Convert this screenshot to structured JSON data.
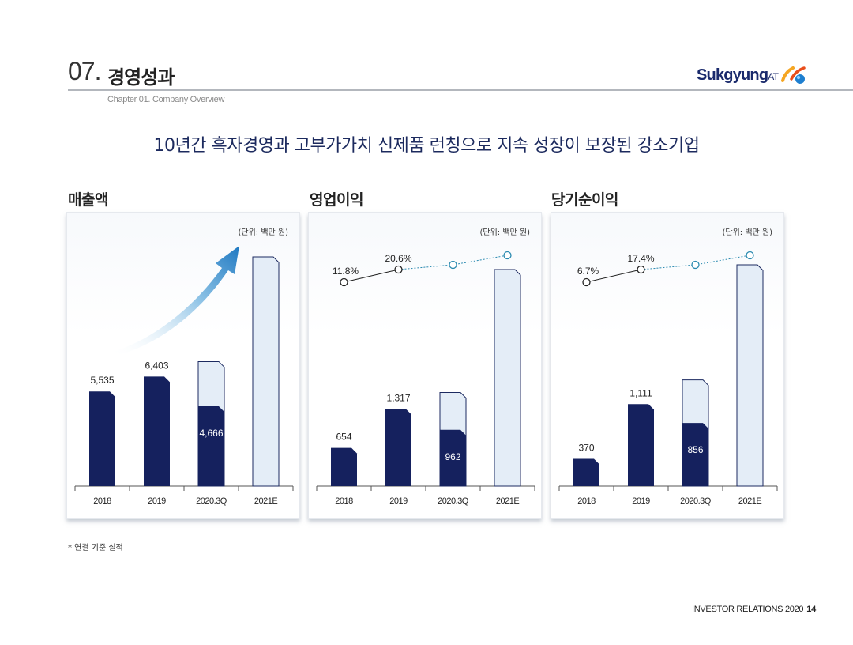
{
  "header": {
    "section_number": "07.",
    "section_title": "경영성과",
    "subtitle": "Chapter 01. Company Overview",
    "logo": {
      "text": "Sukgyung",
      "suffix": "AT",
      "icon": "sukgyung-logo-icon"
    }
  },
  "headline": "10년간 흑자경영과 고부가가치 신제품 런칭으로 지속 성장이 보장된 강소기업",
  "footnote": "* 연결 기준 실적",
  "footer": {
    "label": "INVESTOR RELATIONS 2020",
    "page": "14"
  },
  "colors": {
    "navy": "#15215e",
    "light_bar": "#e4edf7",
    "bar_border": "#1c2a60",
    "dashed_line": "#2a8ab0",
    "solid_line": "#222222"
  },
  "chart_data": [
    {
      "type": "bar",
      "title": "매출액",
      "unit": "(단위: 백만 원)",
      "categories": [
        "2018",
        "2019",
        "2020.3Q",
        "2021E"
      ],
      "values": [
        5535,
        6403,
        4666,
        null
      ],
      "value_labels": [
        "5,535",
        "6,403",
        "4,666",
        ""
      ],
      "projection_heights": [
        null,
        null,
        7280,
        13400
      ],
      "growth_arrow": true
    },
    {
      "type": "bar",
      "title": "영업이익",
      "unit": "(단위: 백만 원)",
      "categories": [
        "2018",
        "2019",
        "2020.3Q",
        "2021E"
      ],
      "values": [
        654,
        1317,
        962,
        null
      ],
      "value_labels": [
        "654",
        "1,317",
        "962",
        ""
      ],
      "projection_heights": [
        null,
        null,
        1600,
        3700
      ],
      "margin_line": {
        "labels": [
          "11.8%",
          "20.6%",
          "",
          ""
        ],
        "values": [
          11.8,
          20.6,
          null,
          null
        ]
      }
    },
    {
      "type": "bar",
      "title": "당기순이익",
      "unit": "(단위: 백만 원)",
      "categories": [
        "2018",
        "2019",
        "2020.3Q",
        "2021E"
      ],
      "values": [
        370,
        1111,
        856,
        null
      ],
      "value_labels": [
        "370",
        "1,111",
        "856",
        ""
      ],
      "projection_heights": [
        null,
        null,
        1440,
        3000
      ],
      "margin_line": {
        "labels": [
          "6.7%",
          "17.4%",
          "",
          ""
        ],
        "values": [
          6.7,
          17.4,
          null,
          null
        ]
      }
    }
  ]
}
